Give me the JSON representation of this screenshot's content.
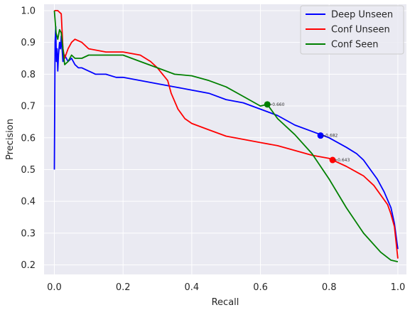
{
  "chart_data": {
    "type": "line",
    "title": "",
    "xlabel": "Recall",
    "ylabel": "Precision",
    "xlim": [
      -0.03,
      1.025
    ],
    "ylim": [
      0.17,
      1.02
    ],
    "xticks": [
      0.0,
      0.2,
      0.4,
      0.6,
      0.8,
      1.0
    ],
    "xtick_labels": [
      "0.0",
      "0.2",
      "0.4",
      "0.6",
      "0.8",
      "1.0"
    ],
    "yticks": [
      0.2,
      0.3,
      0.4,
      0.5,
      0.6,
      0.7,
      0.8,
      0.9,
      1.0
    ],
    "ytick_labels": [
      "0.2",
      "0.3",
      "0.4",
      "0.5",
      "0.6",
      "0.7",
      "0.8",
      "0.9",
      "1.0"
    ],
    "grid": true,
    "background": "#eaeaf2",
    "legend_position": "top-right",
    "series": [
      {
        "name": "Deep Unseen",
        "color": "#0000ff",
        "x": [
          0.0,
          0.002,
          0.004,
          0.006,
          0.008,
          0.01,
          0.012,
          0.015,
          0.018,
          0.02,
          0.025,
          0.03,
          0.035,
          0.04,
          0.05,
          0.06,
          0.07,
          0.08,
          0.1,
          0.12,
          0.15,
          0.18,
          0.2,
          0.25,
          0.3,
          0.35,
          0.4,
          0.45,
          0.5,
          0.55,
          0.6,
          0.65,
          0.7,
          0.75,
          0.775,
          0.8,
          0.85,
          0.88,
          0.9,
          0.92,
          0.94,
          0.96,
          0.98,
          0.99,
          1.0
        ],
        "y": [
          0.5,
          0.9,
          0.95,
          0.84,
          0.88,
          0.81,
          0.86,
          0.9,
          0.88,
          0.92,
          0.84,
          0.86,
          0.85,
          0.84,
          0.85,
          0.83,
          0.82,
          0.82,
          0.81,
          0.8,
          0.8,
          0.79,
          0.79,
          0.78,
          0.77,
          0.76,
          0.75,
          0.74,
          0.72,
          0.71,
          0.69,
          0.67,
          0.64,
          0.62,
          0.61,
          0.6,
          0.57,
          0.55,
          0.53,
          0.5,
          0.47,
          0.43,
          0.38,
          0.33,
          0.25
        ]
      },
      {
        "name": "Conf Unseen",
        "color": "#ff0000",
        "x": [
          0.0,
          0.005,
          0.01,
          0.02,
          0.025,
          0.03,
          0.04,
          0.05,
          0.06,
          0.08,
          0.1,
          0.15,
          0.2,
          0.25,
          0.28,
          0.3,
          0.33,
          0.34,
          0.36,
          0.38,
          0.4,
          0.45,
          0.5,
          0.55,
          0.6,
          0.65,
          0.7,
          0.75,
          0.8,
          0.81,
          0.85,
          0.9,
          0.93,
          0.95,
          0.97,
          0.98,
          0.99,
          1.0
        ],
        "y": [
          1.0,
          1.0,
          1.0,
          0.99,
          0.88,
          0.85,
          0.88,
          0.9,
          0.91,
          0.9,
          0.88,
          0.87,
          0.87,
          0.86,
          0.84,
          0.82,
          0.78,
          0.74,
          0.69,
          0.66,
          0.645,
          0.625,
          0.605,
          0.595,
          0.585,
          0.575,
          0.56,
          0.545,
          0.535,
          0.53,
          0.51,
          0.48,
          0.45,
          0.42,
          0.39,
          0.36,
          0.32,
          0.22
        ]
      },
      {
        "name": "Conf Seen",
        "color": "#008000",
        "x": [
          0.0,
          0.005,
          0.01,
          0.015,
          0.02,
          0.025,
          0.03,
          0.04,
          0.05,
          0.06,
          0.08,
          0.1,
          0.15,
          0.2,
          0.25,
          0.3,
          0.35,
          0.4,
          0.45,
          0.5,
          0.55,
          0.6,
          0.62,
          0.65,
          0.7,
          0.75,
          0.8,
          0.85,
          0.9,
          0.95,
          0.98,
          1.0
        ],
        "y": [
          1.0,
          0.93,
          0.91,
          0.94,
          0.93,
          0.88,
          0.83,
          0.84,
          0.86,
          0.85,
          0.85,
          0.86,
          0.86,
          0.86,
          0.84,
          0.82,
          0.8,
          0.795,
          0.78,
          0.76,
          0.73,
          0.7,
          0.705,
          0.66,
          0.61,
          0.55,
          0.47,
          0.38,
          0.3,
          0.24,
          0.215,
          0.21
        ]
      }
    ],
    "annotations": [
      {
        "series": "Conf Seen",
        "x": 0.62,
        "y": 0.705,
        "label": "=0.660",
        "color": "#008000"
      },
      {
        "series": "Deep Unseen",
        "x": 0.775,
        "y": 0.607,
        "label": "=0.682",
        "color": "#0000ff"
      },
      {
        "series": "Conf Unseen",
        "x": 0.81,
        "y": 0.53,
        "label": "=0.643",
        "color": "#ff0000"
      }
    ]
  }
}
